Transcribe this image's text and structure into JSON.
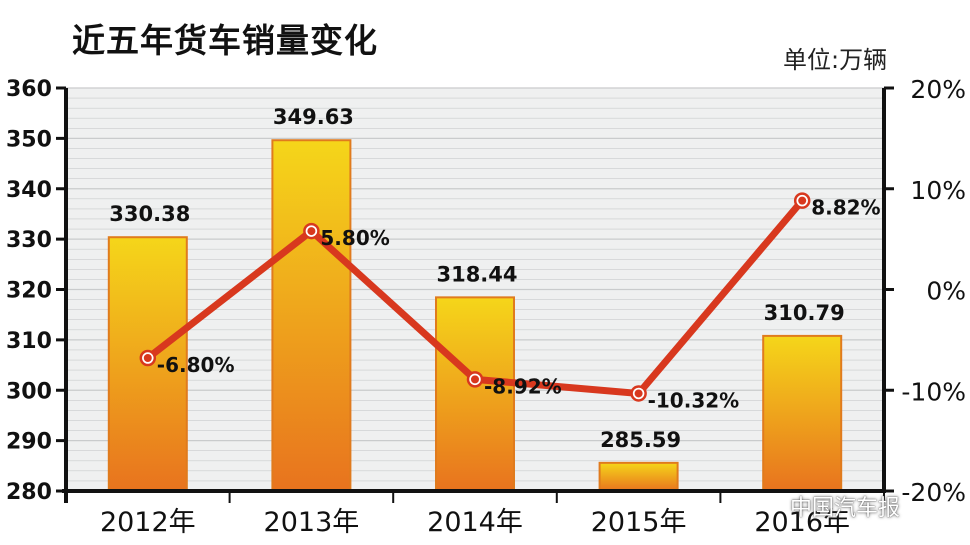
{
  "title": "近五年货车销量变化",
  "unit_label": "单位:万辆",
  "watermark": "中国汽车报",
  "chart_data": {
    "type": "bar",
    "categories": [
      "2012年",
      "2013年",
      "2014年",
      "2015年",
      "2016年"
    ],
    "series": [
      {
        "type": "bar",
        "values": [
          330.38,
          349.63,
          318.44,
          285.59,
          310.79
        ],
        "value_labels": [
          "330.38",
          "349.63",
          "318.44",
          "285.59",
          "310.79"
        ]
      },
      {
        "type": "line",
        "axis": "right",
        "values": [
          -6.8,
          5.8,
          -8.92,
          -10.32,
          8.82
        ],
        "value_labels": [
          "-6.80%",
          "5.80%",
          "-8.92%",
          "-10.32%",
          "8.82%"
        ]
      }
    ],
    "left_axis": {
      "ylim": [
        280,
        360
      ],
      "ticks": [
        280,
        290,
        300,
        310,
        320,
        330,
        340,
        350,
        360
      ],
      "tick_labels": [
        "280",
        "290",
        "300",
        "310",
        "320",
        "330",
        "340",
        "350",
        "360"
      ]
    },
    "right_axis": {
      "ylim": [
        -20,
        20
      ],
      "ticks": [
        -20,
        -10,
        0,
        10,
        20
      ],
      "tick_labels": [
        "-20%",
        "-10%",
        "0%",
        "10%",
        "20%"
      ]
    },
    "grid": true,
    "legend": "none",
    "colors": {
      "bar_top": "#f5d61a",
      "bar_bottom": "#e8731e",
      "bar_stroke": "#e07b1d",
      "line": "#d8381e",
      "marker_fill": "#ffffff",
      "plot_bg": "#eff0f0",
      "grid": "#c9cbcc"
    }
  }
}
